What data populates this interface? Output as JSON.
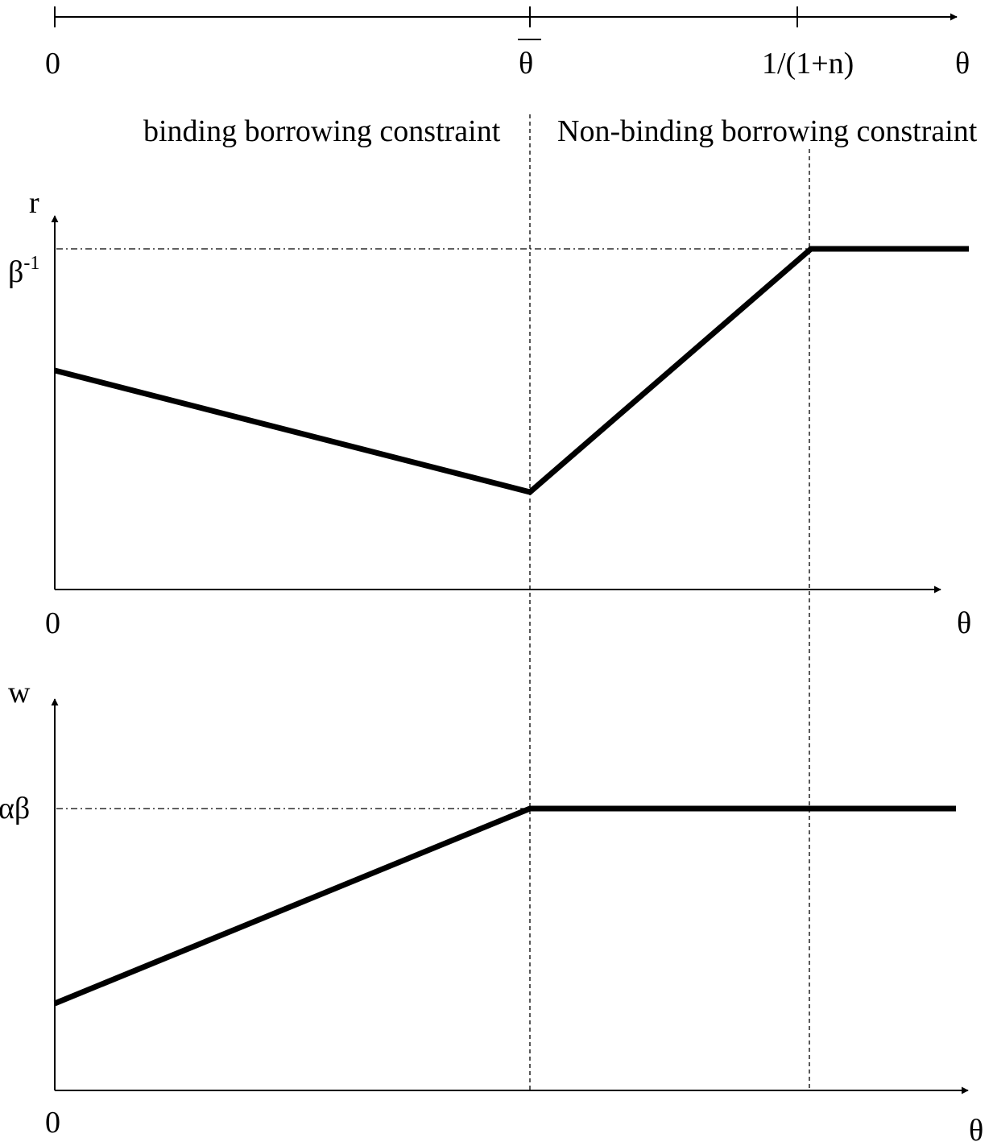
{
  "colors": {
    "line": "#000000",
    "background": "#ffffff"
  },
  "top_axis": {
    "tick_labels": [
      "0",
      "θ",
      "1/(1+n)"
    ],
    "axis_label": "θ",
    "theta_bar_has_overline": true
  },
  "regions": {
    "left": "binding borrowing constraint",
    "right": "Non-binding borrowing constraint"
  },
  "r_panel": {
    "y_axis_label": "r",
    "y_tick_label": "β",
    "y_tick_superscript": "-1",
    "origin_label": "0",
    "x_axis_label": "θ"
  },
  "w_panel": {
    "y_axis_label": "w",
    "y_tick_label": "αβ",
    "origin_label": "0",
    "x_axis_label": "θ"
  },
  "chart_data": [
    {
      "type": "line",
      "title": "",
      "xlabel": "θ",
      "ylabel": "r",
      "x": [
        "0",
        "θ̄",
        "1/(1+n)",
        "end"
      ],
      "series": [
        {
          "values": [
            0.64,
            0.29,
            1.0,
            1.0
          ]
        }
      ],
      "note_levels": {
        "β-1": 1.0
      },
      "grid": false
    },
    {
      "type": "line",
      "title": "",
      "xlabel": "θ",
      "ylabel": "w",
      "x": [
        "0",
        "θ̄",
        "end"
      ],
      "series": [
        {
          "values": [
            0.24,
            1.0,
            1.0
          ]
        }
      ],
      "note_levels": {
        "αβ": 1.0
      },
      "grid": false
    }
  ]
}
